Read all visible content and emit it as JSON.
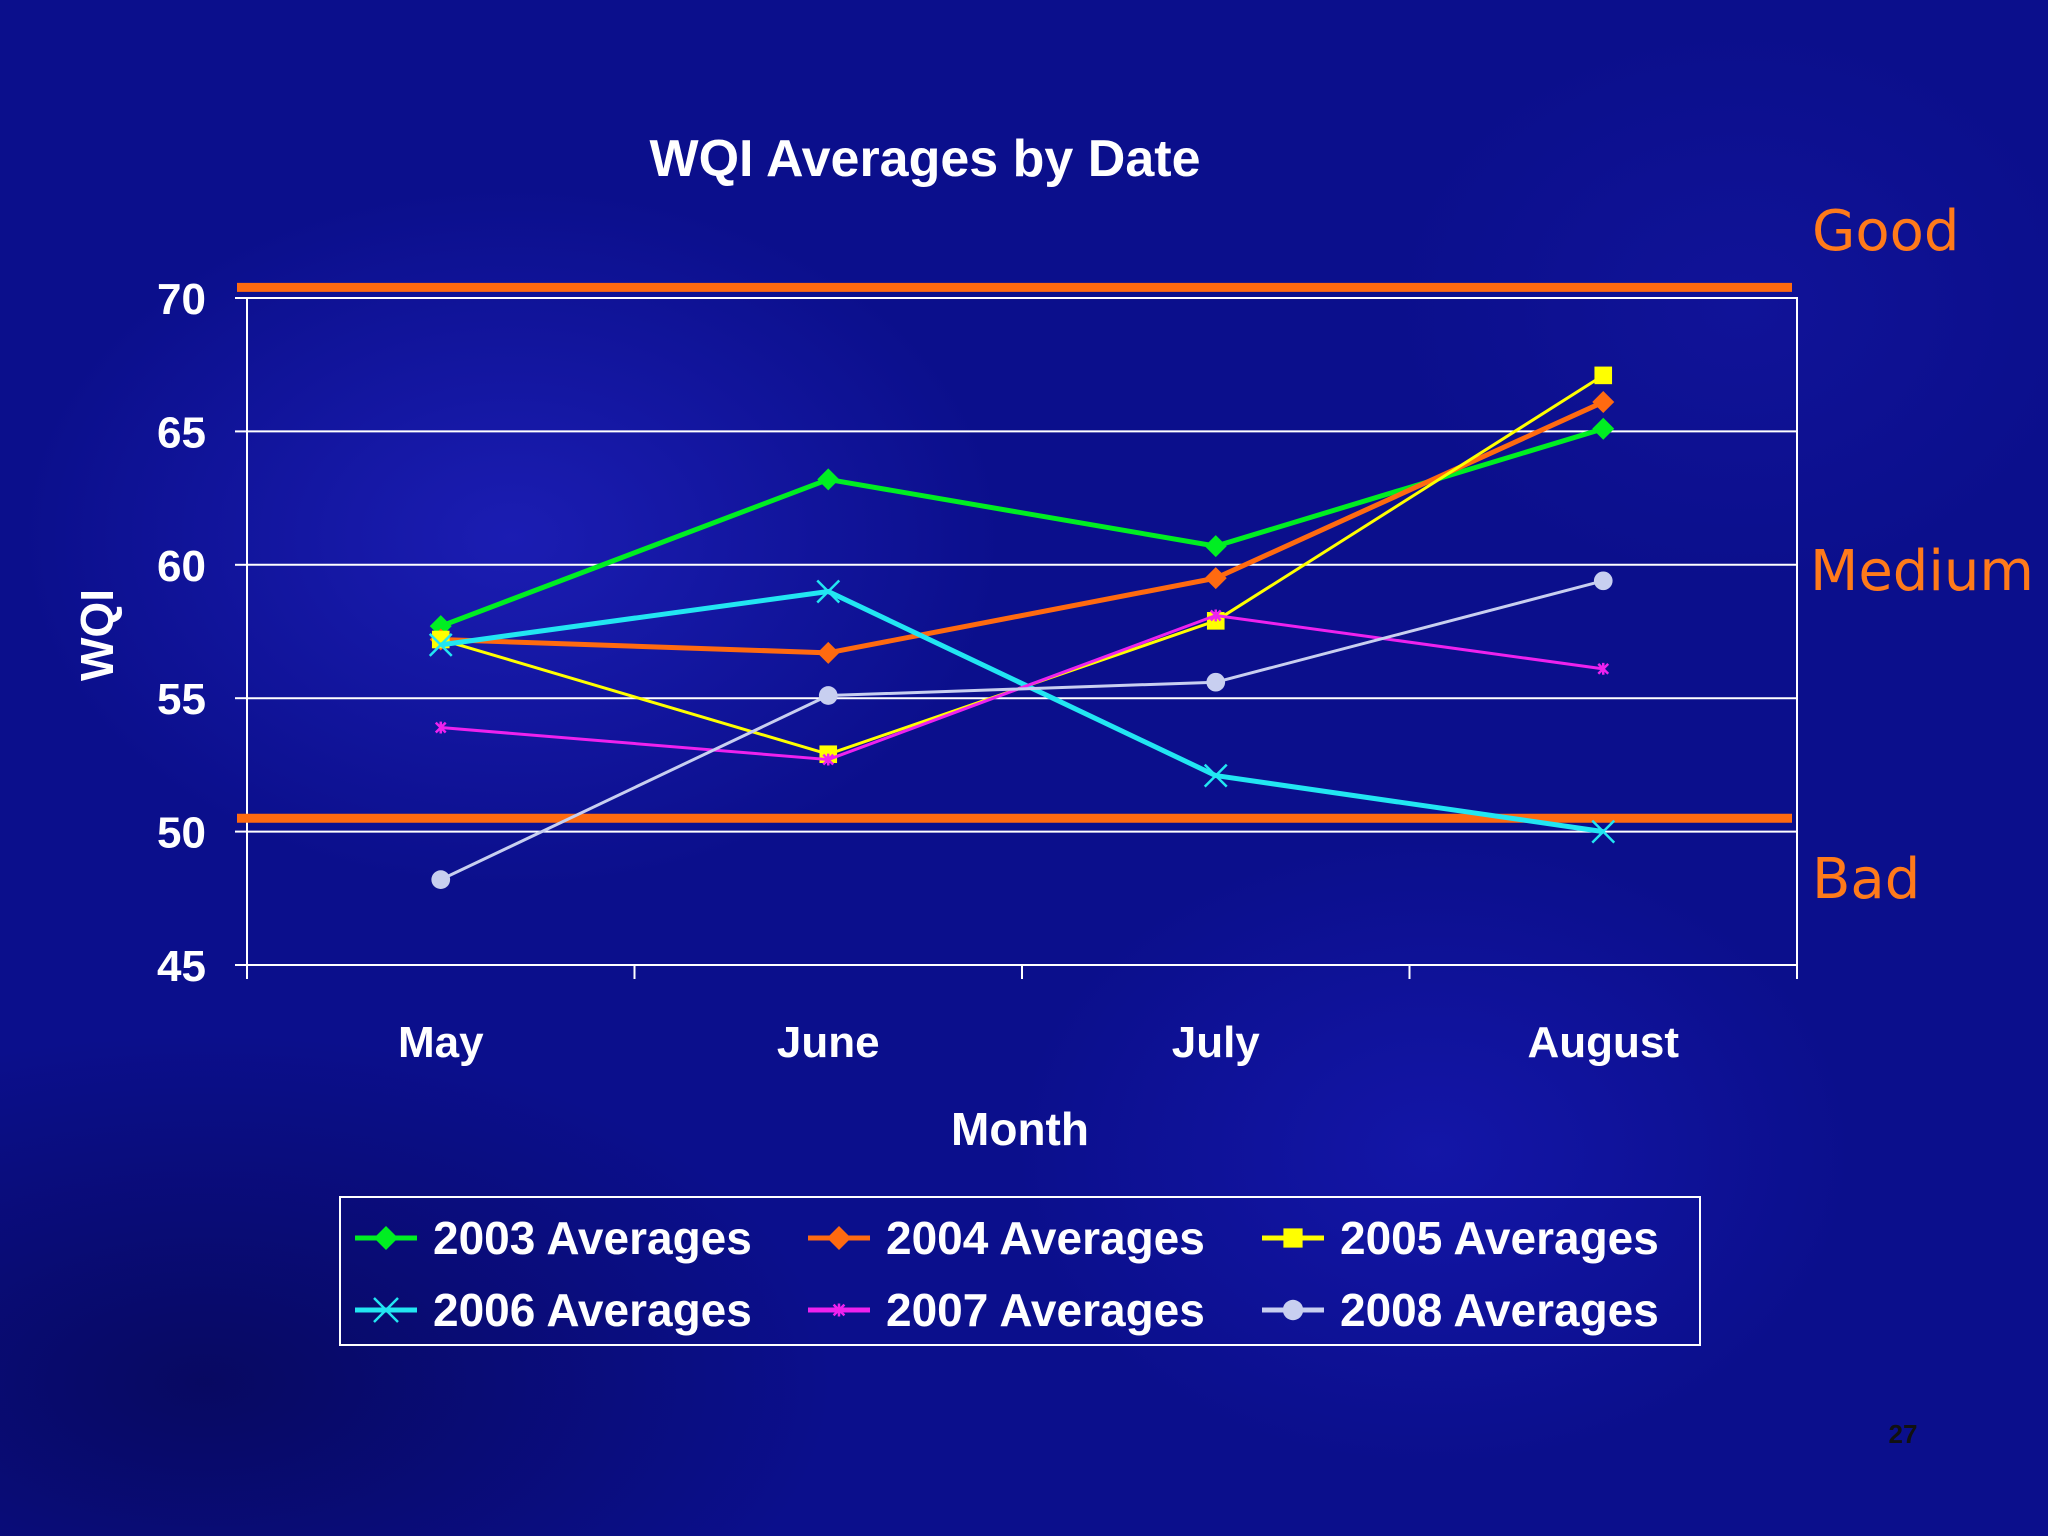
{
  "chart_data": {
    "type": "line",
    "title": "WQI Averages by Date",
    "xlabel": "Month",
    "ylabel": "WQI",
    "categories": [
      "May",
      "June",
      "July",
      "August"
    ],
    "ylim": [
      45,
      70
    ],
    "yticks": [
      45,
      50,
      55,
      60,
      65,
      70
    ],
    "grid": true,
    "legend_position": "bottom",
    "series": [
      {
        "name": "2003 Averages",
        "values": [
          57.7,
          63.2,
          60.7,
          65.1
        ],
        "color": "#00ee22",
        "marker": "diamond"
      },
      {
        "name": "2004 Averages",
        "values": [
          57.2,
          56.7,
          59.5,
          66.1
        ],
        "color": "#ff6a10",
        "marker": "diamond"
      },
      {
        "name": "2005 Averages",
        "values": [
          57.2,
          52.9,
          57.9,
          67.1
        ],
        "color": "#ffff00",
        "marker": "square"
      },
      {
        "name": "2006 Averages",
        "values": [
          57.0,
          59.0,
          52.1,
          50.0
        ],
        "color": "#22e6f2",
        "marker": "x"
      },
      {
        "name": "2007 Averages",
        "values": [
          53.9,
          52.7,
          58.1,
          56.1
        ],
        "color": "#ee22ee",
        "marker": "star"
      },
      {
        "name": "2008 Averages",
        "values": [
          48.2,
          55.1,
          55.6,
          59.4
        ],
        "color": "#c8cff0",
        "marker": "circle"
      }
    ],
    "threshold_lines": [
      {
        "value": 70.4,
        "color": "#ff6a10"
      },
      {
        "value": 50.5,
        "color": "#ff6a10"
      }
    ],
    "band_labels": [
      "Good",
      "Medium",
      "Bad"
    ]
  },
  "page_number": "27"
}
